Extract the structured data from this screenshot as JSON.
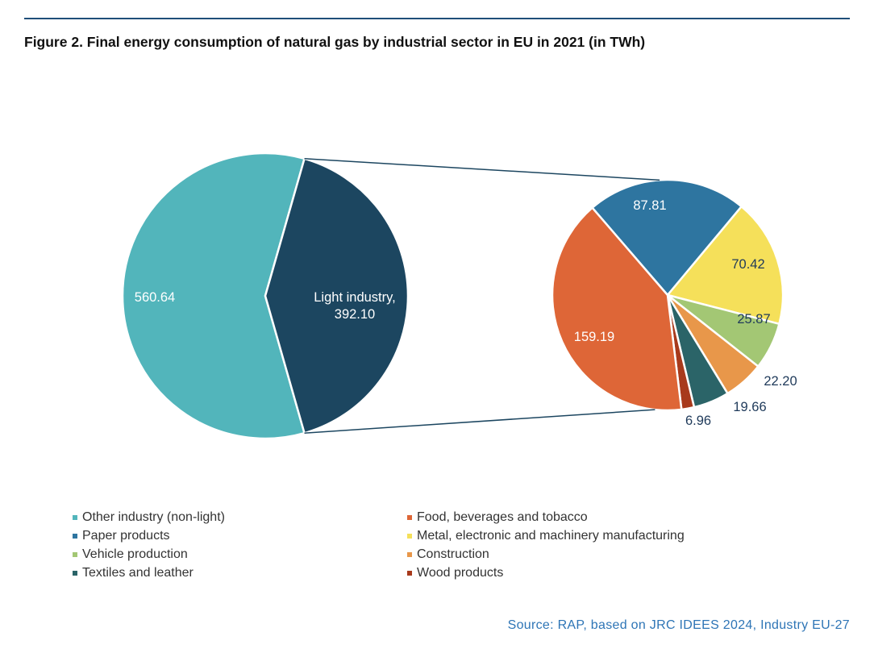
{
  "figure": {
    "title": "Figure 2. Final energy consumption of natural gas by industrial sector in EU in 2021 (in TWh)",
    "source": "Source: RAP, based on JRC IDEES 2024, Industry EU-27"
  },
  "chart_data": [
    {
      "type": "pie",
      "slices": [
        {
          "name": "Other industry (non-light)",
          "value": 560.64,
          "label": "560.64",
          "color": "#52b5bb"
        },
        {
          "name": "Light industry",
          "value": 392.1,
          "label": "Light industry,\n392.10",
          "color": "#1c4660"
        }
      ]
    },
    {
      "type": "pie",
      "slices": [
        {
          "name": "Paper products",
          "value": 87.81,
          "label": "87.81",
          "color": "#2e75a0"
        },
        {
          "name": "Metal, electronic and machinery manufacturing",
          "value": 70.42,
          "label": "70.42",
          "color": "#f5e05a"
        },
        {
          "name": "Vehicle production",
          "value": 25.87,
          "label": "25.87",
          "color": "#a3c774"
        },
        {
          "name": "Construction",
          "value": 22.2,
          "label": "22.20",
          "color": "#e8974a"
        },
        {
          "name": "Textiles and leather",
          "value": 19.66,
          "label": "19.66",
          "color": "#2b6468"
        },
        {
          "name": "Wood products",
          "value": 6.96,
          "label": "6.96",
          "color": "#a83a1c"
        },
        {
          "name": "Food, beverages and tobacco",
          "value": 159.19,
          "label": "159.19",
          "color": "#de6637"
        }
      ]
    }
  ],
  "legend": {
    "col1": [
      {
        "label": "Other industry (non-light)",
        "color": "#52b5bb"
      },
      {
        "label": "Paper products",
        "color": "#2e75a0"
      },
      {
        "label": "Vehicle production",
        "color": "#a3c774"
      },
      {
        "label": "Textiles and leather",
        "color": "#2b6468"
      }
    ],
    "col2": [
      {
        "label": "Food, beverages and tobacco",
        "color": "#de6637"
      },
      {
        "label": "Metal, electronic and machinery manufacturing",
        "color": "#f5e05a"
      },
      {
        "label": "Construction",
        "color": "#e8974a"
      },
      {
        "label": "Wood products",
        "color": "#a83a1c"
      }
    ]
  }
}
